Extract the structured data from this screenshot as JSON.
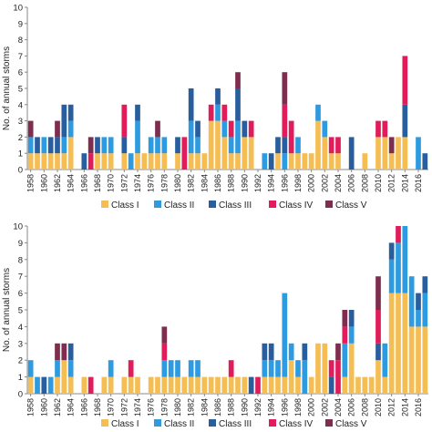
{
  "chart_data": [
    {
      "type": "bar",
      "stacked": true,
      "ylabel": "No. of annual storms",
      "xlabel": "",
      "ylim": [
        0,
        10
      ],
      "yticks": [
        0,
        1,
        2,
        3,
        4,
        5,
        6,
        7,
        8,
        9,
        10
      ],
      "grid": false,
      "legend_position": "bottom",
      "categories": [
        1958,
        1959,
        1960,
        1961,
        1962,
        1963,
        1964,
        1965,
        1966,
        1967,
        1968,
        1969,
        1970,
        1971,
        1972,
        1973,
        1974,
        1975,
        1976,
        1977,
        1978,
        1979,
        1980,
        1981,
        1982,
        1983,
        1984,
        1985,
        1986,
        1987,
        1988,
        1989,
        1990,
        1991,
        1992,
        1993,
        1994,
        1995,
        1996,
        1997,
        1998,
        1999,
        2000,
        2001,
        2002,
        2003,
        2004,
        2005,
        2006,
        2007,
        2008,
        2009,
        2010,
        2011,
        2012,
        2013,
        2014,
        2015,
        2016,
        2017
      ],
      "xtick_labels": [
        "1958",
        "1960",
        "1962",
        "1964",
        "1966",
        "1968",
        "1970",
        "1972",
        "1974",
        "1976",
        "1978",
        "1980",
        "1982",
        "1984",
        "1986",
        "1988",
        "1990",
        "1992",
        "1994",
        "1996",
        "1998",
        "2000",
        "2002",
        "2004",
        "2006",
        "2008",
        "2010",
        "2012",
        "2014",
        "2016"
      ],
      "series": [
        {
          "name": "Class I",
          "color": "#F5BE55",
          "values": [
            1,
            1,
            1,
            1,
            1,
            1,
            2,
            0,
            0,
            0,
            1,
            1,
            1,
            0,
            1,
            0,
            1,
            1,
            1,
            1,
            1,
            0,
            1,
            0,
            1,
            1,
            1,
            3,
            3,
            2,
            1,
            1,
            2,
            2,
            0,
            0,
            0,
            1,
            0,
            1,
            1,
            1,
            1,
            3,
            2,
            1,
            1,
            0,
            0,
            0,
            1,
            0,
            2,
            2,
            1,
            2,
            2,
            0,
            0,
            0
          ]
        },
        {
          "name": "Class II",
          "color": "#2E9BE0",
          "values": [
            1,
            0,
            1,
            0,
            0,
            1,
            1,
            0,
            0,
            0,
            0,
            1,
            1,
            0,
            0,
            1,
            2,
            0,
            1,
            1,
            1,
            0,
            0,
            0,
            2,
            1,
            0,
            0,
            1,
            1,
            1,
            2,
            0,
            0,
            0,
            1,
            0,
            0,
            1,
            0,
            1,
            0,
            0,
            1,
            1,
            0,
            0,
            0,
            0,
            0,
            0,
            0,
            0,
            0,
            0,
            0,
            0,
            0,
            2,
            0
          ]
        },
        {
          "name": "Class III",
          "color": "#285E9E",
          "values": [
            0,
            1,
            0,
            1,
            1,
            2,
            1,
            0,
            1,
            0,
            1,
            0,
            0,
            0,
            1,
            0,
            1,
            0,
            0,
            0,
            0,
            0,
            1,
            0,
            2,
            1,
            0,
            0,
            1,
            0,
            0,
            2,
            1,
            0,
            0,
            0,
            1,
            1,
            1,
            0,
            0,
            0,
            0,
            0,
            0,
            0,
            0,
            0,
            2,
            0,
            0,
            0,
            0,
            0,
            0,
            0,
            2,
            0,
            0,
            1
          ]
        },
        {
          "name": "Class IV",
          "color": "#E01C5B",
          "values": [
            0,
            0,
            0,
            0,
            0,
            0,
            0,
            0,
            0,
            1,
            0,
            0,
            0,
            0,
            2,
            0,
            0,
            0,
            0,
            0,
            0,
            0,
            0,
            2,
            0,
            0,
            0,
            1,
            0,
            1,
            1,
            0,
            0,
            1,
            0,
            0,
            0,
            0,
            2,
            2,
            0,
            0,
            0,
            0,
            0,
            1,
            1,
            0,
            0,
            0,
            0,
            0,
            1,
            1,
            0,
            0,
            3,
            0,
            0,
            0
          ]
        },
        {
          "name": "Class V",
          "color": "#7E2D4E",
          "values": [
            1,
            0,
            0,
            0,
            1,
            0,
            0,
            0,
            0,
            1,
            0,
            0,
            0,
            0,
            0,
            0,
            0,
            0,
            0,
            1,
            0,
            0,
            0,
            0,
            0,
            0,
            0,
            0,
            0,
            0,
            0,
            1,
            0,
            0,
            0,
            0,
            0,
            0,
            2,
            0,
            0,
            0,
            0,
            0,
            0,
            0,
            0,
            0,
            0,
            0,
            0,
            0,
            0,
            0,
            1,
            0,
            0,
            0,
            0,
            0
          ]
        }
      ]
    },
    {
      "type": "bar",
      "stacked": true,
      "ylabel": "No. of annual storms",
      "xlabel": "",
      "ylim": [
        0,
        10
      ],
      "yticks": [
        0,
        1,
        2,
        3,
        4,
        5,
        6,
        7,
        8,
        9,
        10
      ],
      "grid": false,
      "legend_position": "bottom",
      "categories": [
        1958,
        1959,
        1960,
        1961,
        1962,
        1963,
        1964,
        1965,
        1966,
        1967,
        1968,
        1969,
        1970,
        1971,
        1972,
        1973,
        1974,
        1975,
        1976,
        1977,
        1978,
        1979,
        1980,
        1981,
        1982,
        1983,
        1984,
        1985,
        1986,
        1987,
        1988,
        1989,
        1990,
        1991,
        1992,
        1993,
        1994,
        1995,
        1996,
        1997,
        1998,
        1999,
        2000,
        2001,
        2002,
        2003,
        2004,
        2005,
        2006,
        2007,
        2008,
        2009,
        2010,
        2011,
        2012,
        2013,
        2014,
        2015,
        2016,
        2017
      ],
      "xtick_labels": [
        "1958",
        "1960",
        "1962",
        "1964",
        "1966",
        "1968",
        "1970",
        "1972",
        "1974",
        "1976",
        "1978",
        "1980",
        "1982",
        "1984",
        "1986",
        "1988",
        "1990",
        "1992",
        "1994",
        "1996",
        "1998",
        "2000",
        "2002",
        "2004",
        "2006",
        "2008",
        "2010",
        "2012",
        "2014",
        "2016"
      ],
      "series": [
        {
          "name": "Class I",
          "color": "#F5BE55",
          "values": [
            1,
            0,
            0,
            0,
            1,
            2,
            1,
            0,
            1,
            0,
            0,
            1,
            1,
            0,
            1,
            1,
            1,
            0,
            1,
            1,
            1,
            1,
            1,
            1,
            1,
            1,
            1,
            1,
            1,
            1,
            1,
            1,
            1,
            0,
            0,
            1,
            1,
            1,
            1,
            2,
            1,
            0,
            1,
            3,
            3,
            0,
            0,
            1,
            3,
            1,
            1,
            1,
            2,
            1,
            6,
            6,
            6,
            4,
            4,
            4
          ]
        },
        {
          "name": "Class II",
          "color": "#2E9BE0",
          "values": [
            1,
            1,
            0,
            1,
            1,
            0,
            1,
            0,
            0,
            0,
            0,
            0,
            1,
            0,
            0,
            0,
            0,
            0,
            0,
            0,
            1,
            1,
            1,
            0,
            1,
            1,
            0,
            0,
            0,
            0,
            0,
            0,
            0,
            0,
            0,
            1,
            1,
            1,
            5,
            1,
            1,
            2,
            0,
            0,
            0,
            0,
            0,
            2,
            1,
            0,
            0,
            0,
            0,
            2,
            2,
            3,
            4,
            3,
            1,
            2
          ]
        },
        {
          "name": "Class III",
          "color": "#285E9E",
          "values": [
            0,
            0,
            1,
            0,
            0,
            0,
            1,
            0,
            0,
            0,
            0,
            0,
            0,
            0,
            0,
            0,
            0,
            0,
            0,
            0,
            0,
            0,
            0,
            0,
            0,
            0,
            0,
            0,
            0,
            0,
            0,
            0,
            0,
            1,
            0,
            1,
            1,
            0,
            0,
            0,
            0,
            1,
            0,
            0,
            0,
            1,
            0,
            0,
            1,
            0,
            0,
            0,
            1,
            0,
            1,
            0,
            0,
            0,
            1,
            1
          ]
        },
        {
          "name": "Class IV",
          "color": "#E01C5B",
          "values": [
            0,
            0,
            0,
            0,
            0,
            0,
            0,
            0,
            0,
            1,
            0,
            0,
            0,
            0,
            0,
            1,
            0,
            0,
            0,
            0,
            1,
            0,
            0,
            0,
            0,
            0,
            0,
            0,
            0,
            0,
            1,
            0,
            0,
            0,
            1,
            0,
            0,
            0,
            0,
            0,
            0,
            0,
            0,
            0,
            0,
            1,
            2,
            1,
            0,
            0,
            0,
            0,
            2,
            0,
            0,
            1,
            0,
            0,
            0,
            0
          ]
        },
        {
          "name": "Class V",
          "color": "#7E2D4E",
          "values": [
            0,
            0,
            0,
            0,
            1,
            1,
            0,
            0,
            0,
            0,
            0,
            0,
            0,
            0,
            0,
            0,
            0,
            0,
            0,
            0,
            1,
            0,
            0,
            0,
            0,
            0,
            0,
            0,
            0,
            0,
            0,
            0,
            0,
            0,
            0,
            0,
            0,
            0,
            0,
            0,
            0,
            0,
            0,
            0,
            0,
            0,
            1,
            1,
            0,
            0,
            0,
            0,
            2,
            0,
            0,
            0,
            0,
            0,
            0,
            0
          ]
        }
      ]
    }
  ]
}
